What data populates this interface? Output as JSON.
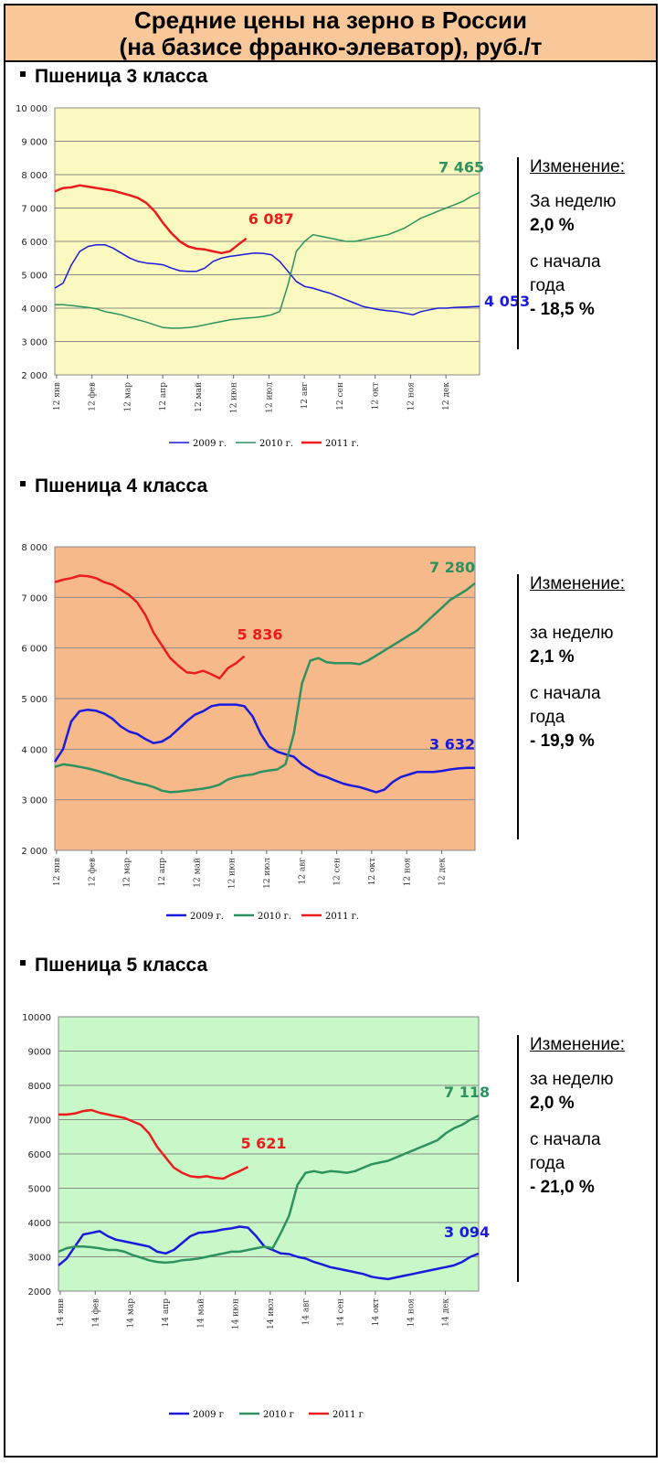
{
  "header": {
    "title_line1": "Средние цены на зерно в России",
    "title_line2": "(на базисе франко-элеватор), руб./т"
  },
  "sections": [
    {
      "title": "Пшеница 3  класса",
      "change": {
        "header": "Изменение:",
        "week_label": "За  неделю",
        "week_value": "2,0 %",
        "ytd_label1": "с начала",
        "ytd_label2": "года",
        "ytd_value": "- 18,5 %"
      }
    },
    {
      "title": "Пшеница 4 класса",
      "change": {
        "header": "Изменение:",
        "week_label": "за  неделю",
        "week_value": "2,1 %",
        "ytd_label1": "с начала",
        "ytd_label2": "года",
        "ytd_value": "- 19,9 %"
      }
    },
    {
      "title": "Пшеница 5 класса",
      "change": {
        "header": "Изменение:",
        "week_label": "за  неделю",
        "week_value": "2,0 %",
        "ytd_label1": "с начала",
        "ytd_label2": "года",
        "ytd_value": "- 21,0 %"
      }
    }
  ],
  "chart_data": [
    {
      "type": "line",
      "plot_bg": "#fafac0",
      "ylim": [
        2000,
        10000
      ],
      "yticks": [
        "2 000",
        "3 000",
        "4 000",
        "5 000",
        "6 000",
        "7 000",
        "8 000",
        "9 000",
        "10 000"
      ],
      "ytick_values": [
        2000,
        3000,
        4000,
        5000,
        6000,
        7000,
        8000,
        9000,
        10000
      ],
      "xticks": [
        "12 янв",
        "12 фев",
        "12 мар",
        "12 апр",
        "12 май",
        "12 июн",
        "12 июл",
        "12 авг",
        "12 сен",
        "12 окт",
        "12 ноя",
        "12 дек"
      ],
      "x_count": 52,
      "series": [
        {
          "name": "2009 г.",
          "color": "#1a1adc",
          "width": 1.5,
          "values": [
            4600,
            4750,
            5300,
            5700,
            5850,
            5900,
            5900,
            5800,
            5650,
            5500,
            5400,
            5350,
            5330,
            5300,
            5200,
            5120,
            5100,
            5100,
            5200,
            5400,
            5500,
            5550,
            5580,
            5620,
            5650,
            5640,
            5600,
            5400,
            5100,
            4800,
            4650,
            4600,
            4520,
            4450,
            4350,
            4250,
            4150,
            4050,
            4000,
            3950,
            3920,
            3900,
            3850,
            3800,
            3900,
            3950,
            4000,
            4000,
            4020,
            4030,
            4040,
            4053
          ],
          "end_label": "4 053"
        },
        {
          "name": "2010 г.",
          "color": "#2e9160",
          "width": 1.5,
          "values": [
            4100,
            4100,
            4080,
            4050,
            4020,
            3980,
            3900,
            3850,
            3800,
            3720,
            3650,
            3580,
            3500,
            3420,
            3400,
            3400,
            3420,
            3450,
            3500,
            3550,
            3600,
            3650,
            3680,
            3700,
            3720,
            3750,
            3800,
            3900,
            4700,
            5700,
            6000,
            6200,
            6150,
            6100,
            6050,
            6000,
            6000,
            6050,
            6100,
            6150,
            6200,
            6300,
            6400,
            6550,
            6700,
            6800,
            6900,
            7000,
            7100,
            7200,
            7350,
            7465
          ],
          "end_label": "7 465"
        },
        {
          "name": "2011 г.",
          "color": "#ec1c1c",
          "width": 2.5,
          "values": [
            7500,
            7600,
            7620,
            7680,
            7640,
            7600,
            7560,
            7520,
            7450,
            7380,
            7300,
            7150,
            6900,
            6550,
            6250,
            6000,
            5850,
            5780,
            5760,
            5700,
            5650,
            5700,
            5900,
            6087
          ],
          "end_label": "6 087"
        }
      ]
    },
    {
      "type": "line",
      "plot_bg": "#f7b88a",
      "ylim": [
        2000,
        8000
      ],
      "yticks": [
        "2 000",
        "3 000",
        "4 000",
        "5 000",
        "6 000",
        "7 000",
        "8 000"
      ],
      "ytick_values": [
        2000,
        3000,
        4000,
        5000,
        6000,
        7000,
        8000
      ],
      "xticks": [
        "12 янв",
        "12 фев",
        "12 мар",
        "12 апр",
        "12 май",
        "12 июн",
        "12 июл",
        "12 авг",
        "12 сен",
        "12 окт",
        "12 ноя",
        "12 дек"
      ],
      "x_count": 52,
      "series": [
        {
          "name": "2009 г.",
          "color": "#1a1adc",
          "width": 2.5,
          "values": [
            3750,
            4000,
            4550,
            4750,
            4780,
            4760,
            4700,
            4600,
            4450,
            4350,
            4300,
            4200,
            4120,
            4150,
            4250,
            4400,
            4550,
            4680,
            4750,
            4850,
            4880,
            4880,
            4880,
            4850,
            4650,
            4300,
            4050,
            3950,
            3900,
            3850,
            3700,
            3600,
            3500,
            3450,
            3380,
            3320,
            3280,
            3250,
            3200,
            3150,
            3200,
            3350,
            3450,
            3500,
            3550,
            3550,
            3550,
            3570,
            3600,
            3620,
            3630,
            3632
          ],
          "end_label": "3 632"
        },
        {
          "name": "2010 г.",
          "color": "#2e9160",
          "width": 2.5,
          "values": [
            3650,
            3700,
            3680,
            3650,
            3620,
            3580,
            3530,
            3480,
            3420,
            3380,
            3330,
            3300,
            3250,
            3180,
            3150,
            3160,
            3180,
            3200,
            3220,
            3250,
            3300,
            3400,
            3450,
            3480,
            3500,
            3550,
            3580,
            3600,
            3700,
            4300,
            5300,
            5750,
            5800,
            5720,
            5700,
            5700,
            5700,
            5680,
            5750,
            5850,
            5950,
            6050,
            6150,
            6250,
            6350,
            6500,
            6650,
            6800,
            6950,
            7050,
            7150,
            7280
          ],
          "end_label": "7 280"
        },
        {
          "name": "2011 г.",
          "color": "#ec1c1c",
          "width": 2.5,
          "values": [
            7300,
            7350,
            7380,
            7430,
            7420,
            7380,
            7300,
            7250,
            7150,
            7050,
            6900,
            6650,
            6300,
            6050,
            5800,
            5650,
            5520,
            5500,
            5550,
            5480,
            5400,
            5600,
            5700,
            5836
          ],
          "end_label": "5 836"
        }
      ]
    },
    {
      "type": "line",
      "plot_bg": "#c8f7c8",
      "ylim": [
        2000,
        10000
      ],
      "yticks": [
        "2000",
        "3000",
        "4000",
        "5000",
        "6000",
        "7000",
        "8000",
        "9000",
        "10000"
      ],
      "ytick_values": [
        2000,
        3000,
        4000,
        5000,
        6000,
        7000,
        8000,
        9000,
        10000
      ],
      "xticks": [
        "14 янв",
        "14 фев",
        "14 мар",
        "14 апр",
        "14 май",
        "14 июн",
        "14 июл",
        "14 авг",
        "14 сен",
        "14 окт",
        "14 ноя",
        "14 дек"
      ],
      "x_count": 52,
      "series": [
        {
          "name": "2009 г",
          "color": "#1a1adc",
          "width": 2.5,
          "values": [
            2750,
            2950,
            3300,
            3650,
            3700,
            3750,
            3600,
            3500,
            3450,
            3400,
            3350,
            3300,
            3150,
            3100,
            3200,
            3400,
            3600,
            3700,
            3720,
            3750,
            3800,
            3830,
            3880,
            3850,
            3600,
            3300,
            3200,
            3100,
            3080,
            3000,
            2950,
            2850,
            2780,
            2700,
            2650,
            2600,
            2550,
            2500,
            2420,
            2380,
            2350,
            2400,
            2450,
            2500,
            2550,
            2600,
            2650,
            2700,
            2750,
            2850,
            3000,
            3094
          ],
          "end_label": "3 094"
        },
        {
          "name": "2010 г",
          "color": "#2e9160",
          "width": 2.5,
          "values": [
            3150,
            3250,
            3300,
            3300,
            3280,
            3250,
            3200,
            3200,
            3150,
            3050,
            2980,
            2900,
            2850,
            2830,
            2850,
            2900,
            2920,
            2950,
            3000,
            3050,
            3100,
            3150,
            3150,
            3200,
            3250,
            3300,
            3250,
            3700,
            4200,
            5100,
            5450,
            5500,
            5450,
            5500,
            5480,
            5450,
            5500,
            5600,
            5700,
            5750,
            5800,
            5900,
            6000,
            6100,
            6200,
            6300,
            6400,
            6600,
            6750,
            6850,
            7000,
            7118
          ],
          "end_label": "7 118"
        },
        {
          "name": "2011 г",
          "color": "#ec1c1c",
          "width": 2.5,
          "values": [
            7150,
            7150,
            7180,
            7250,
            7280,
            7200,
            7150,
            7100,
            7050,
            6950,
            6850,
            6600,
            6200,
            5900,
            5600,
            5450,
            5350,
            5320,
            5350,
            5300,
            5280,
            5400,
            5500,
            5621
          ],
          "end_label": "5 621"
        }
      ]
    }
  ]
}
